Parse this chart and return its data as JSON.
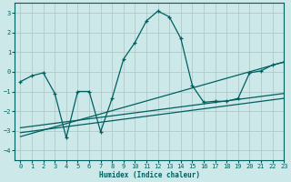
{
  "xlabel": "Humidex (Indice chaleur)",
  "xlim": [
    -0.5,
    23
  ],
  "ylim": [
    -4.5,
    3.5
  ],
  "yticks": [
    -4,
    -3,
    -2,
    -1,
    0,
    1,
    2,
    3
  ],
  "xticks": [
    0,
    1,
    2,
    3,
    4,
    5,
    6,
    7,
    8,
    9,
    10,
    11,
    12,
    13,
    14,
    15,
    16,
    17,
    18,
    19,
    20,
    21,
    22,
    23
  ],
  "background_color": "#cce8e8",
  "grid_color": "#b0c8c8",
  "line_color": "#006060",
  "zigzag": {
    "x": [
      0,
      1,
      2,
      3,
      4,
      5,
      6,
      7,
      8,
      9,
      10,
      11,
      12,
      13,
      14,
      15,
      16,
      17,
      18,
      19,
      20,
      21,
      22,
      23
    ],
    "y": [
      -0.5,
      -0.2,
      -0.05,
      -1.1,
      -3.35,
      -1.0,
      -1.0,
      -3.05,
      -1.35,
      0.65,
      1.5,
      2.6,
      3.1,
      2.8,
      1.7,
      -0.7,
      -1.55,
      -1.5,
      -1.5,
      -1.35,
      -0.05,
      0.05,
      0.35,
      0.5
    ]
  },
  "straight_lines": [
    {
      "x": [
        0,
        23
      ],
      "y": [
        -3.3,
        0.5
      ]
    },
    {
      "x": [
        0,
        23
      ],
      "y": [
        -3.1,
        -1.35
      ]
    },
    {
      "x": [
        0,
        23
      ],
      "y": [
        -2.85,
        -1.1
      ]
    }
  ]
}
